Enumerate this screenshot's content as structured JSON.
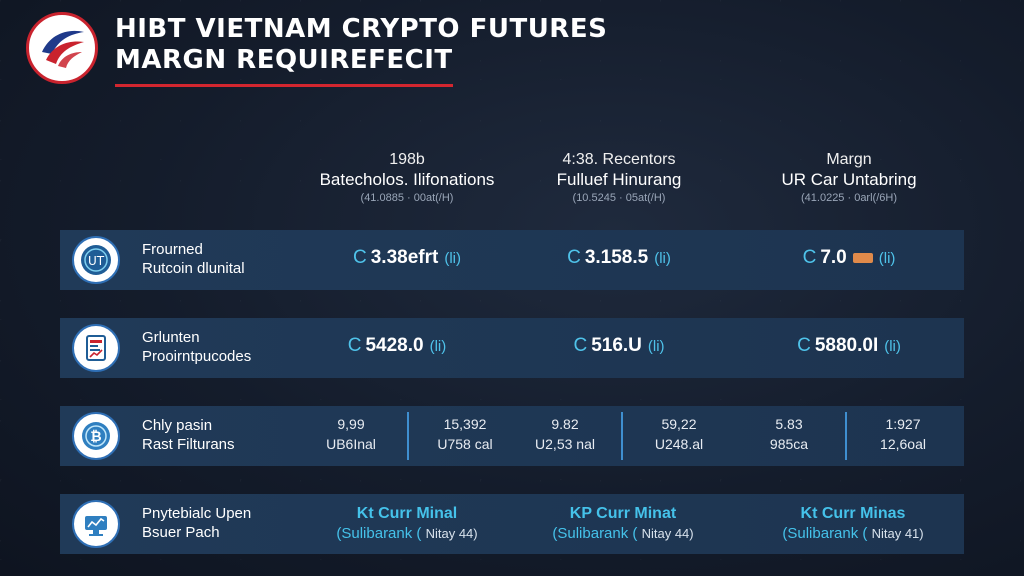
{
  "header": {
    "title_line1": "HIBT VIETNAM CRYPTO FUTURES",
    "title_line2": "MARGN REQUIREFECIT"
  },
  "columns": [
    {
      "line1": "198b",
      "line2": "Batecholos. Ilifonations",
      "line3": "(41.0885 · 00at(/H)"
    },
    {
      "line1": "4:38. Recentors",
      "line2": "Fulluef Hinurang",
      "line3": "(10.5245 · 05at(/H)"
    },
    {
      "line1": "Margn",
      "line2": "UR Car Untabring",
      "line3": "(41.0225 · 0arl(/6H)"
    }
  ],
  "rows": [
    {
      "label_line1": "Frourned",
      "label_line2": "Rutcoin dlunital",
      "icon": "bitcoin-coin-icon",
      "values": [
        {
          "prefix": "C",
          "value": "3.38efrt",
          "unit": "(li)"
        },
        {
          "prefix": "C",
          "value": "3.158.5",
          "unit": "(li)"
        },
        {
          "prefix": "C",
          "value": "7.0",
          "unit": "(li)"
        }
      ]
    },
    {
      "label_line1": "Grlunten",
      "label_line2": "Prooirntpucodes",
      "icon": "document-chart-icon",
      "values": [
        {
          "prefix": "C",
          "value": "5428.0",
          "unit": "(li)"
        },
        {
          "prefix": "C",
          "value": "516.U",
          "unit": "(li)"
        },
        {
          "prefix": "C",
          "value": "5880.0I",
          "unit": "(li)"
        }
      ]
    },
    {
      "label_line1": "Chly pasin",
      "label_line2": "Rast Filturans",
      "icon": "bitcoin-icon",
      "pairs": [
        {
          "a1": "9,99",
          "a2": "UB6Inal",
          "b1": "15,392",
          "b2": "U758 cal"
        },
        {
          "a1": "9.82",
          "a2": "U2,53 nal",
          "b1": "59,22",
          "b2": "U248.al"
        },
        {
          "a1": "5.83",
          "a2": "985ca",
          "b1": "1:927",
          "b2": "12,6oal"
        }
      ]
    },
    {
      "label_line1": "Pnytebialc Upen",
      "label_line2": "Bsuer Pach",
      "icon": "exchange-icon",
      "cyan": [
        {
          "l1": "Kt Curr Minal",
          "l2a": "(Sulibarank (",
          "l2b": "Nitay 44)"
        },
        {
          "l1": "KP Curr Minat",
          "l2a": "(Sulibarank (",
          "l2b": "Nitay 44)"
        },
        {
          "l1": "Kt Curr Minas",
          "l2a": "(Sulibarank (",
          "l2b": "Nitay 41)"
        }
      ]
    }
  ],
  "colors": {
    "accent_red": "#d3262f",
    "accent_cyan": "#45c2ea",
    "row_bg": "#1e3450"
  }
}
